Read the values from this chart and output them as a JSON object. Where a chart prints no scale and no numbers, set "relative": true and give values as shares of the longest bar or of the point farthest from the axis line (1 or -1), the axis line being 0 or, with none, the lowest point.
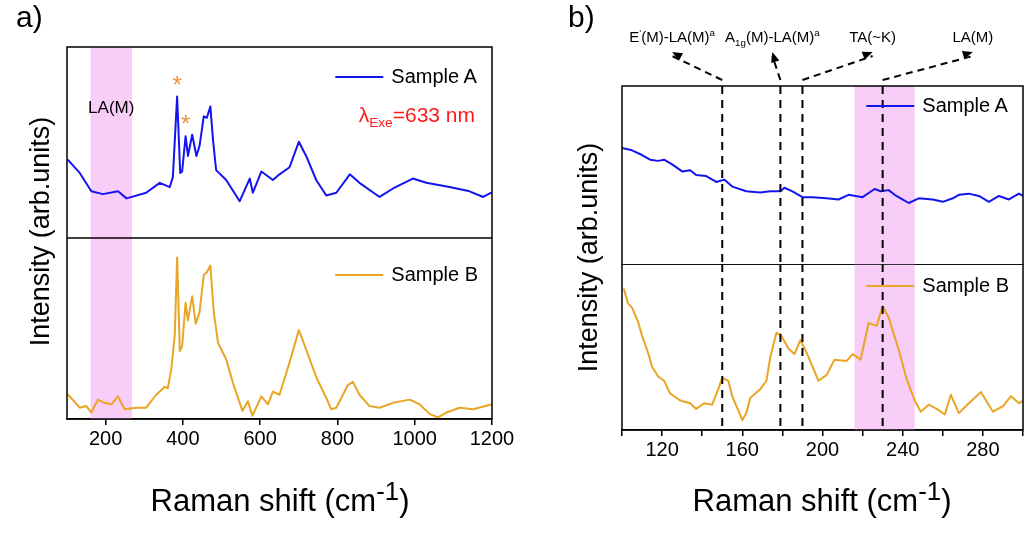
{
  "chart_data": [
    {
      "type": "line",
      "title": "a)",
      "ylabel": "Intensity (arb.units)",
      "relative": true,
      "xlim": [
        100,
        1200
      ],
      "legend": "top right",
      "x": [
        103,
        133,
        163,
        193,
        232,
        254,
        305,
        340,
        366,
        374,
        385,
        393,
        398,
        407,
        413,
        424,
        435,
        443,
        454,
        462,
        471,
        478,
        486,
        512,
        547,
        573,
        581,
        603,
        633,
        650,
        676,
        700,
        719,
        745,
        771,
        797,
        832,
        857,
        909,
        944,
        995,
        1030,
        1090,
        1142,
        1177,
        1198
      ],
      "series": [
        {
          "name": "Sample A",
          "color": "#1414f0",
          "values": [
            0.55,
            0.46,
            0.33,
            0.31,
            0.33,
            0.28,
            0.32,
            0.39,
            0.36,
            0.43,
            1.0,
            0.46,
            0.47,
            0.72,
            0.58,
            0.73,
            0.58,
            0.65,
            0.86,
            0.85,
            0.93,
            0.69,
            0.48,
            0.41,
            0.26,
            0.42,
            0.32,
            0.47,
            0.41,
            0.45,
            0.5,
            0.68,
            0.58,
            0.41,
            0.3,
            0.32,
            0.45,
            0.39,
            0.29,
            0.35,
            0.42,
            0.39,
            0.36,
            0.33,
            0.29,
            0.32
          ]
        }
      ],
      "bands": [
        {
          "axis": "x",
          "from": 161,
          "to": 268,
          "label": "LA(M)",
          "color": "#f8cdf8"
        }
      ],
      "annotations": [
        {
          "text": "*",
          "x": 385,
          "y": 1.0
        },
        {
          "text": "*",
          "x": 407,
          "y": 0.72
        },
        "λ$_{Exe}$=633 nm"
      ]
    },
    {
      "type": "line",
      "xlabel": "Raman shift (cm$^{-1}$)",
      "relative": true,
      "xlim": [
        100,
        1200
      ],
      "xticks": [
        200,
        400,
        600,
        800,
        1000,
        1200
      ],
      "legend": "top right",
      "x": [
        103,
        133,
        150,
        163,
        180,
        197,
        215,
        232,
        249,
        279,
        305,
        331,
        353,
        361,
        370,
        379,
        385,
        392,
        398,
        407,
        413,
        424,
        433,
        443,
        454,
        462,
        471,
        480,
        491,
        512,
        530,
        554,
        568,
        580,
        603,
        620,
        633,
        650,
        676,
        700,
        719,
        745,
        771,
        784,
        797,
        827,
        840,
        857,
        883,
        909,
        944,
        987,
        1013,
        1039,
        1060,
        1082,
        1116,
        1151,
        1198
      ],
      "series": [
        {
          "name": "Sample B",
          "color": "#e8a526",
          "values": [
            0.15,
            0.07,
            0.08,
            0.04,
            0.12,
            0.1,
            0.09,
            0.14,
            0.06,
            0.07,
            0.07,
            0.15,
            0.2,
            0.19,
            0.31,
            0.52,
            1.0,
            0.42,
            0.45,
            0.72,
            0.61,
            0.76,
            0.59,
            0.66,
            0.89,
            0.91,
            0.95,
            0.66,
            0.47,
            0.37,
            0.22,
            0.05,
            0.11,
            0.02,
            0.14,
            0.09,
            0.17,
            0.15,
            0.35,
            0.55,
            0.43,
            0.26,
            0.13,
            0.06,
            0.07,
            0.21,
            0.23,
            0.15,
            0.08,
            0.07,
            0.1,
            0.12,
            0.09,
            0.03,
            0.01,
            0.04,
            0.07,
            0.06,
            0.09
          ]
        }
      ],
      "bands": [
        {
          "axis": "x",
          "from": 161,
          "to": 268,
          "color": "#f8cdf8"
        }
      ]
    },
    {
      "type": "line",
      "title": "b)",
      "ylabel": "Intensity (arb.units)",
      "relative": true,
      "xlim": [
        100,
        300
      ],
      "legend": "top right",
      "x": [
        100,
        105,
        110,
        114,
        118,
        121,
        125,
        130,
        134,
        137,
        142,
        147,
        151,
        155,
        162,
        169,
        174,
        179,
        181,
        185,
        190,
        195,
        202,
        208,
        213,
        220,
        226,
        229,
        233,
        236,
        239,
        243,
        248,
        255,
        260,
        265,
        268,
        273,
        278,
        283,
        288,
        293,
        298,
        300
      ],
      "series": [
        {
          "name": "Sample A",
          "color": "#1414f0",
          "values": [
            1.0,
            0.98,
            0.94,
            0.9,
            0.89,
            0.9,
            0.86,
            0.8,
            0.81,
            0.77,
            0.76,
            0.71,
            0.73,
            0.67,
            0.63,
            0.62,
            0.63,
            0.63,
            0.66,
            0.63,
            0.58,
            0.58,
            0.57,
            0.56,
            0.6,
            0.58,
            0.65,
            0.63,
            0.64,
            0.6,
            0.57,
            0.53,
            0.57,
            0.56,
            0.54,
            0.57,
            0.6,
            0.61,
            0.59,
            0.54,
            0.59,
            0.56,
            0.61,
            0.59
          ]
        }
      ],
      "bands": [
        {
          "axis": "x",
          "from": 216,
          "to": 246,
          "color": "#f8cdf8"
        }
      ],
      "ref_lines": [
        {
          "axis": "x",
          "value": 150,
          "label": "E$^{'}$(M)-LA(M)$^{a}$",
          "color": "#000000",
          "line_style": "dashed"
        },
        {
          "axis": "x",
          "value": 179,
          "label": "A$_{1g}$(M)-LA(M)$^{a}$",
          "color": "#000000",
          "line_style": "dashed"
        },
        {
          "axis": "x",
          "value": 190,
          "label": "TA(~K)",
          "color": "#000000",
          "line_style": "dashed"
        },
        {
          "axis": "x",
          "value": 230,
          "label": "LA(M)",
          "color": "#000000",
          "line_style": "dashed"
        }
      ]
    },
    {
      "type": "line",
      "xlabel": "Raman shift (cm$^{-1}$)",
      "relative": true,
      "xlim": [
        100,
        300
      ],
      "legend": "top right",
      "xticks": [
        {
          "value": 100,
          "label": null
        },
        120,
        {
          "value": 140,
          "label": null
        },
        160,
        {
          "value": 180,
          "label": null
        },
        200,
        {
          "value": 220,
          "label": null
        },
        240,
        {
          "value": 260,
          "label": null
        },
        280,
        {
          "value": 300,
          "label": null
        }
      ],
      "x": [
        101,
        103,
        105,
        108,
        110,
        113,
        115,
        118,
        121,
        124,
        129,
        134,
        137,
        141,
        145,
        148,
        150,
        153,
        155,
        158,
        160,
        162,
        164,
        169,
        172,
        174,
        177,
        179,
        183,
        186,
        189,
        193,
        198,
        202,
        206,
        212,
        215,
        219,
        223,
        227,
        230,
        233,
        238,
        242,
        246,
        249,
        253,
        257,
        261,
        264,
        268,
        273,
        279,
        285,
        290,
        294,
        298,
        300
      ],
      "series": [
        {
          "name": "Sample B",
          "color": "#e8a526",
          "values": [
            1.0,
            0.9,
            0.87,
            0.77,
            0.67,
            0.55,
            0.45,
            0.38,
            0.35,
            0.26,
            0.21,
            0.19,
            0.15,
            0.19,
            0.18,
            0.29,
            0.37,
            0.35,
            0.24,
            0.14,
            0.07,
            0.12,
            0.23,
            0.29,
            0.35,
            0.52,
            0.69,
            0.68,
            0.58,
            0.54,
            0.64,
            0.52,
            0.35,
            0.39,
            0.5,
            0.49,
            0.54,
            0.5,
            0.76,
            0.74,
            0.88,
            0.8,
            0.57,
            0.36,
            0.21,
            0.13,
            0.18,
            0.15,
            0.11,
            0.25,
            0.12,
            0.19,
            0.27,
            0.13,
            0.17,
            0.24,
            0.19,
            0.21
          ]
        }
      ],
      "bands": [
        {
          "axis": "x",
          "from": 216,
          "to": 246,
          "color": "#f8cdf8"
        }
      ],
      "ref_lines": [
        {
          "axis": "x",
          "value": 150,
          "color": "#000000",
          "line_style": "dashed"
        },
        {
          "axis": "x",
          "value": 179,
          "color": "#000000",
          "line_style": "dashed"
        },
        {
          "axis": "x",
          "value": 190,
          "color": "#000000",
          "line_style": "dashed"
        },
        {
          "axis": "x",
          "value": 230,
          "color": "#000000",
          "line_style": "dashed"
        }
      ]
    }
  ]
}
